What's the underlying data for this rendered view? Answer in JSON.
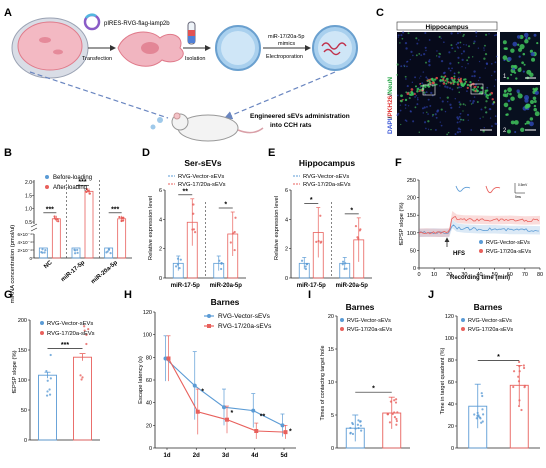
{
  "colors": {
    "blue": "#5b9bd5",
    "red": "#e8605c",
    "dark": "#222222",
    "cell_bg": "#f6f7fb",
    "vesicle": "#9fc9ea"
  },
  "panel_a": {
    "letter": "A",
    "plasmid": "pIRES-RVG-flag-lamp2b",
    "step_transfection": "Transfection",
    "step_isolation": "Isolation",
    "step_mimics_1": "miR-17/20a-5p",
    "step_mimics_2": "mimics",
    "step_electro": "Electroporation",
    "admin_1": "Engineered sEVs administration",
    "admin_2": "into CCH rats"
  },
  "panel_b": {
    "letter": "B",
    "ylabel": "miRNA concentration (pmol/ul)",
    "legend": [
      "Before-loading",
      "After-loading"
    ],
    "groups": [
      "NC",
      "miR-17-5p",
      "miR-20a-5p"
    ],
    "sig": [
      "***",
      "***",
      "***"
    ],
    "yticks_low": [
      "0",
      "2×10⁻⁴",
      "4×10⁻⁴",
      "6×10⁻⁴"
    ],
    "yticks_high": [
      "0.5",
      "1.0",
      "1.5",
      "2.0"
    ],
    "chart_data": {
      "type": "bar",
      "categories": [
        "NC",
        "miR-17-5p",
        "miR-20a-5p"
      ],
      "series": [
        {
          "name": "Before-loading",
          "values": [
            0.0001,
            0.0001,
            0.0001
          ]
        },
        {
          "name": "After-loading",
          "values": [
            0.62,
            1.65,
            0.62
          ]
        }
      ],
      "ylabel": "miRNA concentration (pmol/ul)"
    }
  },
  "panel_c": {
    "letter": "C",
    "title": "Hippocampus",
    "ylabel_parts": [
      "DAPI",
      "/",
      "PKH26",
      "/",
      "NeuN"
    ],
    "inset_1": "1",
    "inset_2": "2"
  },
  "panel_d": {
    "letter": "D",
    "title": "Ser-sEVs",
    "ylabel": "Relative expression level",
    "legend": [
      "RVG-Vector-sEVs",
      "RVG-17/20a-sEVs"
    ],
    "yticks": [
      "0",
      "2",
      "4",
      "6"
    ],
    "groups": [
      "miR-17-5p",
      "miR-20a-5p"
    ],
    "sig": [
      "**",
      "*"
    ],
    "chart_data": {
      "type": "bar",
      "categories": [
        "miR-17-5p",
        "miR-20a-5p"
      ],
      "ylim": [
        0,
        6
      ],
      "series": [
        {
          "name": "RVG-Vector-sEVs",
          "values": [
            1.0,
            1.0
          ],
          "err": [
            0.5,
            0.5
          ]
        },
        {
          "name": "RVG-17/20a-sEVs",
          "values": [
            3.8,
            3.0
          ],
          "err": [
            1.6,
            1.5
          ]
        }
      ]
    }
  },
  "panel_e": {
    "letter": "E",
    "title": "Hippocampus",
    "ylabel": "Relative expression level",
    "legend": [
      "RVG-Vector-sEVs",
      "RVG-17/20a-sEVs"
    ],
    "yticks": [
      "0",
      "2",
      "4",
      "6"
    ],
    "groups": [
      "miR-17-5p",
      "miR-20a-5p"
    ],
    "sig": [
      "*",
      "*"
    ],
    "chart_data": {
      "type": "bar",
      "categories": [
        "miR-17-5p",
        "miR-20a-5p"
      ],
      "ylim": [
        0,
        6
      ],
      "series": [
        {
          "name": "RVG-Vector-sEVs",
          "values": [
            1.0,
            1.0
          ],
          "err": [
            0.4,
            0.4
          ]
        },
        {
          "name": "RVG-17/20a-sEVs",
          "values": [
            3.1,
            2.6
          ],
          "err": [
            1.7,
            1.5
          ]
        }
      ]
    }
  },
  "panel_f": {
    "letter": "F",
    "ylabel": "fEPSP slope (%)",
    "xlabel": "Recording time (min)",
    "xticks": [
      "0",
      "10",
      "20",
      "30",
      "40",
      "50",
      "60",
      "70",
      "80"
    ],
    "yticks": [
      "0",
      "50",
      "100",
      "150",
      "200",
      "250"
    ],
    "hfs": "HFS",
    "legend": [
      "RVG-Vector-sEVs",
      "RVG-17/20a-sEVs"
    ],
    "scale_y": "0.5mV",
    "scale_x": "5ms",
    "chart_data": {
      "type": "line",
      "xlim": [
        0,
        80
      ],
      "ylim": [
        0,
        250
      ],
      "x": [
        0,
        5,
        10,
        15,
        20,
        22,
        25,
        30,
        40,
        50,
        60,
        70,
        80
      ],
      "series": [
        {
          "name": "RVG-Vector-sEVs",
          "values": [
            100,
            100,
            101,
            100,
            100,
            125,
            115,
            112,
            110,
            110,
            108,
            108,
            107
          ]
        },
        {
          "name": "RVG-17/20a-sEVs",
          "values": [
            100,
            101,
            100,
            100,
            101,
            150,
            140,
            138,
            137,
            136,
            137,
            135,
            136
          ]
        }
      ]
    }
  },
  "panel_g": {
    "letter": "G",
    "ylabel": "fEPSP slope (%)",
    "legend": [
      "RVG-Vector-sEVs",
      "RVG-17/20a-sEVs"
    ],
    "yticks": [
      "0",
      "50",
      "100",
      "150",
      "200"
    ],
    "sig": "***",
    "chart_data": {
      "type": "bar",
      "categories": [
        "RVG-Vector-sEVs",
        "RVG-17/20a-sEVs"
      ],
      "ylim": [
        0,
        200
      ],
      "values": [
        108,
        138
      ],
      "err": [
        5,
        6
      ]
    }
  },
  "panel_h": {
    "letter": "H",
    "title": "Barnes",
    "ylabel": "Escape latency (s)",
    "legend": [
      "RVG-Vector-sEVs",
      "RVG-17/20a-sEVs"
    ],
    "xticks": [
      "1d",
      "2d",
      "3d",
      "4d",
      "5d"
    ],
    "yticks": [
      "0",
      "20",
      "40",
      "60",
      "80",
      "100",
      "120"
    ],
    "sig": [
      "*",
      "*",
      "**",
      "*"
    ],
    "chart_data": {
      "type": "line",
      "categories": [
        "1d",
        "2d",
        "3d",
        "4d",
        "5d"
      ],
      "ylim": [
        0,
        120
      ],
      "series": [
        {
          "name": "RVG-Vector-sEVs",
          "values": [
            79,
            55,
            36,
            33,
            20
          ],
          "err": [
            20,
            30,
            16,
            15,
            10
          ]
        },
        {
          "name": "RVG-17/20a-sEVs",
          "values": [
            79,
            32,
            25,
            15,
            14
          ],
          "err": [
            20,
            20,
            12,
            7,
            6
          ]
        }
      ]
    }
  },
  "panel_i": {
    "letter": "I",
    "title": "Barnes",
    "ylabel": "Times of contacting target hole",
    "legend": [
      "RVG-Vector-sEVs",
      "RVG-17/20a-sEVs"
    ],
    "yticks": [
      "0",
      "5",
      "10",
      "15",
      "20"
    ],
    "sig": "*",
    "chart_data": {
      "type": "bar",
      "categories": [
        "RVG-Vector-sEVs",
        "RVG-17/20a-sEVs"
      ],
      "ylim": [
        0,
        20
      ],
      "values": [
        3.0,
        5.3
      ],
      "err": [
        2.0,
        2.4
      ]
    }
  },
  "panel_j": {
    "letter": "J",
    "title": "Barnes",
    "ylabel": "Time in target quadrant (%)",
    "legend": [
      "RVG-Vector-sEVs",
      "RVG-17/20a-sEVs"
    ],
    "yticks": [
      "0",
      "20",
      "40",
      "60",
      "80",
      "100",
      "120"
    ],
    "sig": "*",
    "chart_data": {
      "type": "bar",
      "categories": [
        "RVG-Vector-sEVs",
        "RVG-17/20a-sEVs"
      ],
      "ylim": [
        0,
        120
      ],
      "values": [
        38,
        57
      ],
      "err": [
        20,
        18
      ]
    }
  }
}
